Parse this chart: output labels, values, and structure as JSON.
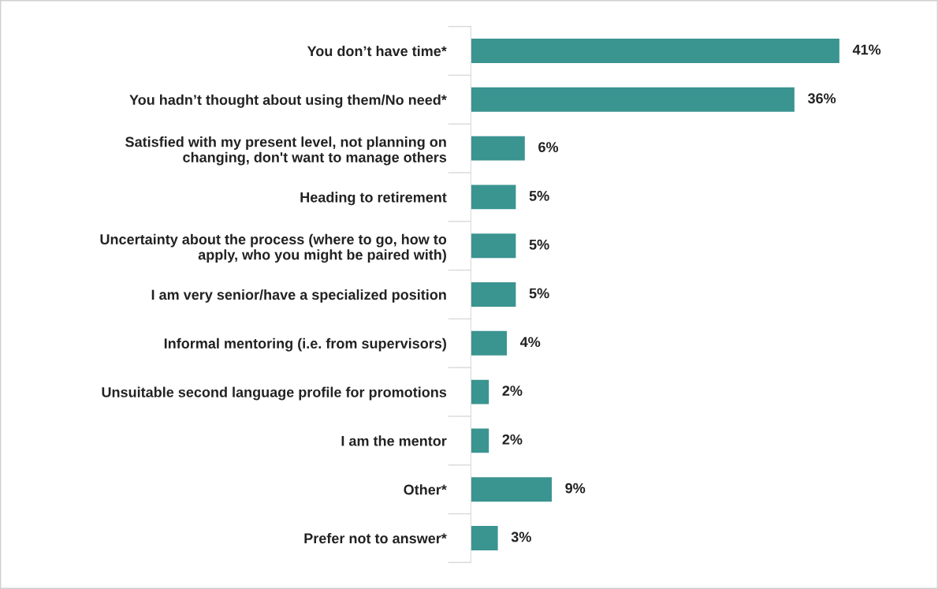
{
  "chart_data": {
    "type": "bar",
    "orientation": "horizontal",
    "categories": [
      "You don’t have time*",
      "You hadn’t thought about using them/No need*",
      "Satisfied with my present level, not planning on\nchanging, don't want to manage others",
      "Heading to retirement",
      "Uncertainty about the process (where to go, how to\napply, who you might be paired with)",
      "I am very senior/have a specialized position",
      "Informal mentoring (i.e. from supervisors)",
      "Unsuitable second language profile for promotions",
      "I am the mentor",
      "Other*",
      "Prefer not to answer*"
    ],
    "values": [
      41,
      36,
      6,
      5,
      5,
      5,
      4,
      2,
      2,
      9,
      3
    ],
    "value_labels": [
      "41%",
      "36%",
      "6%",
      "5%",
      "5%",
      "5%",
      "4%",
      "2%",
      "2%",
      "9%",
      "3%"
    ],
    "color": "#3a9490",
    "tick_labels": "y",
    "grid": false,
    "legend": false
  }
}
